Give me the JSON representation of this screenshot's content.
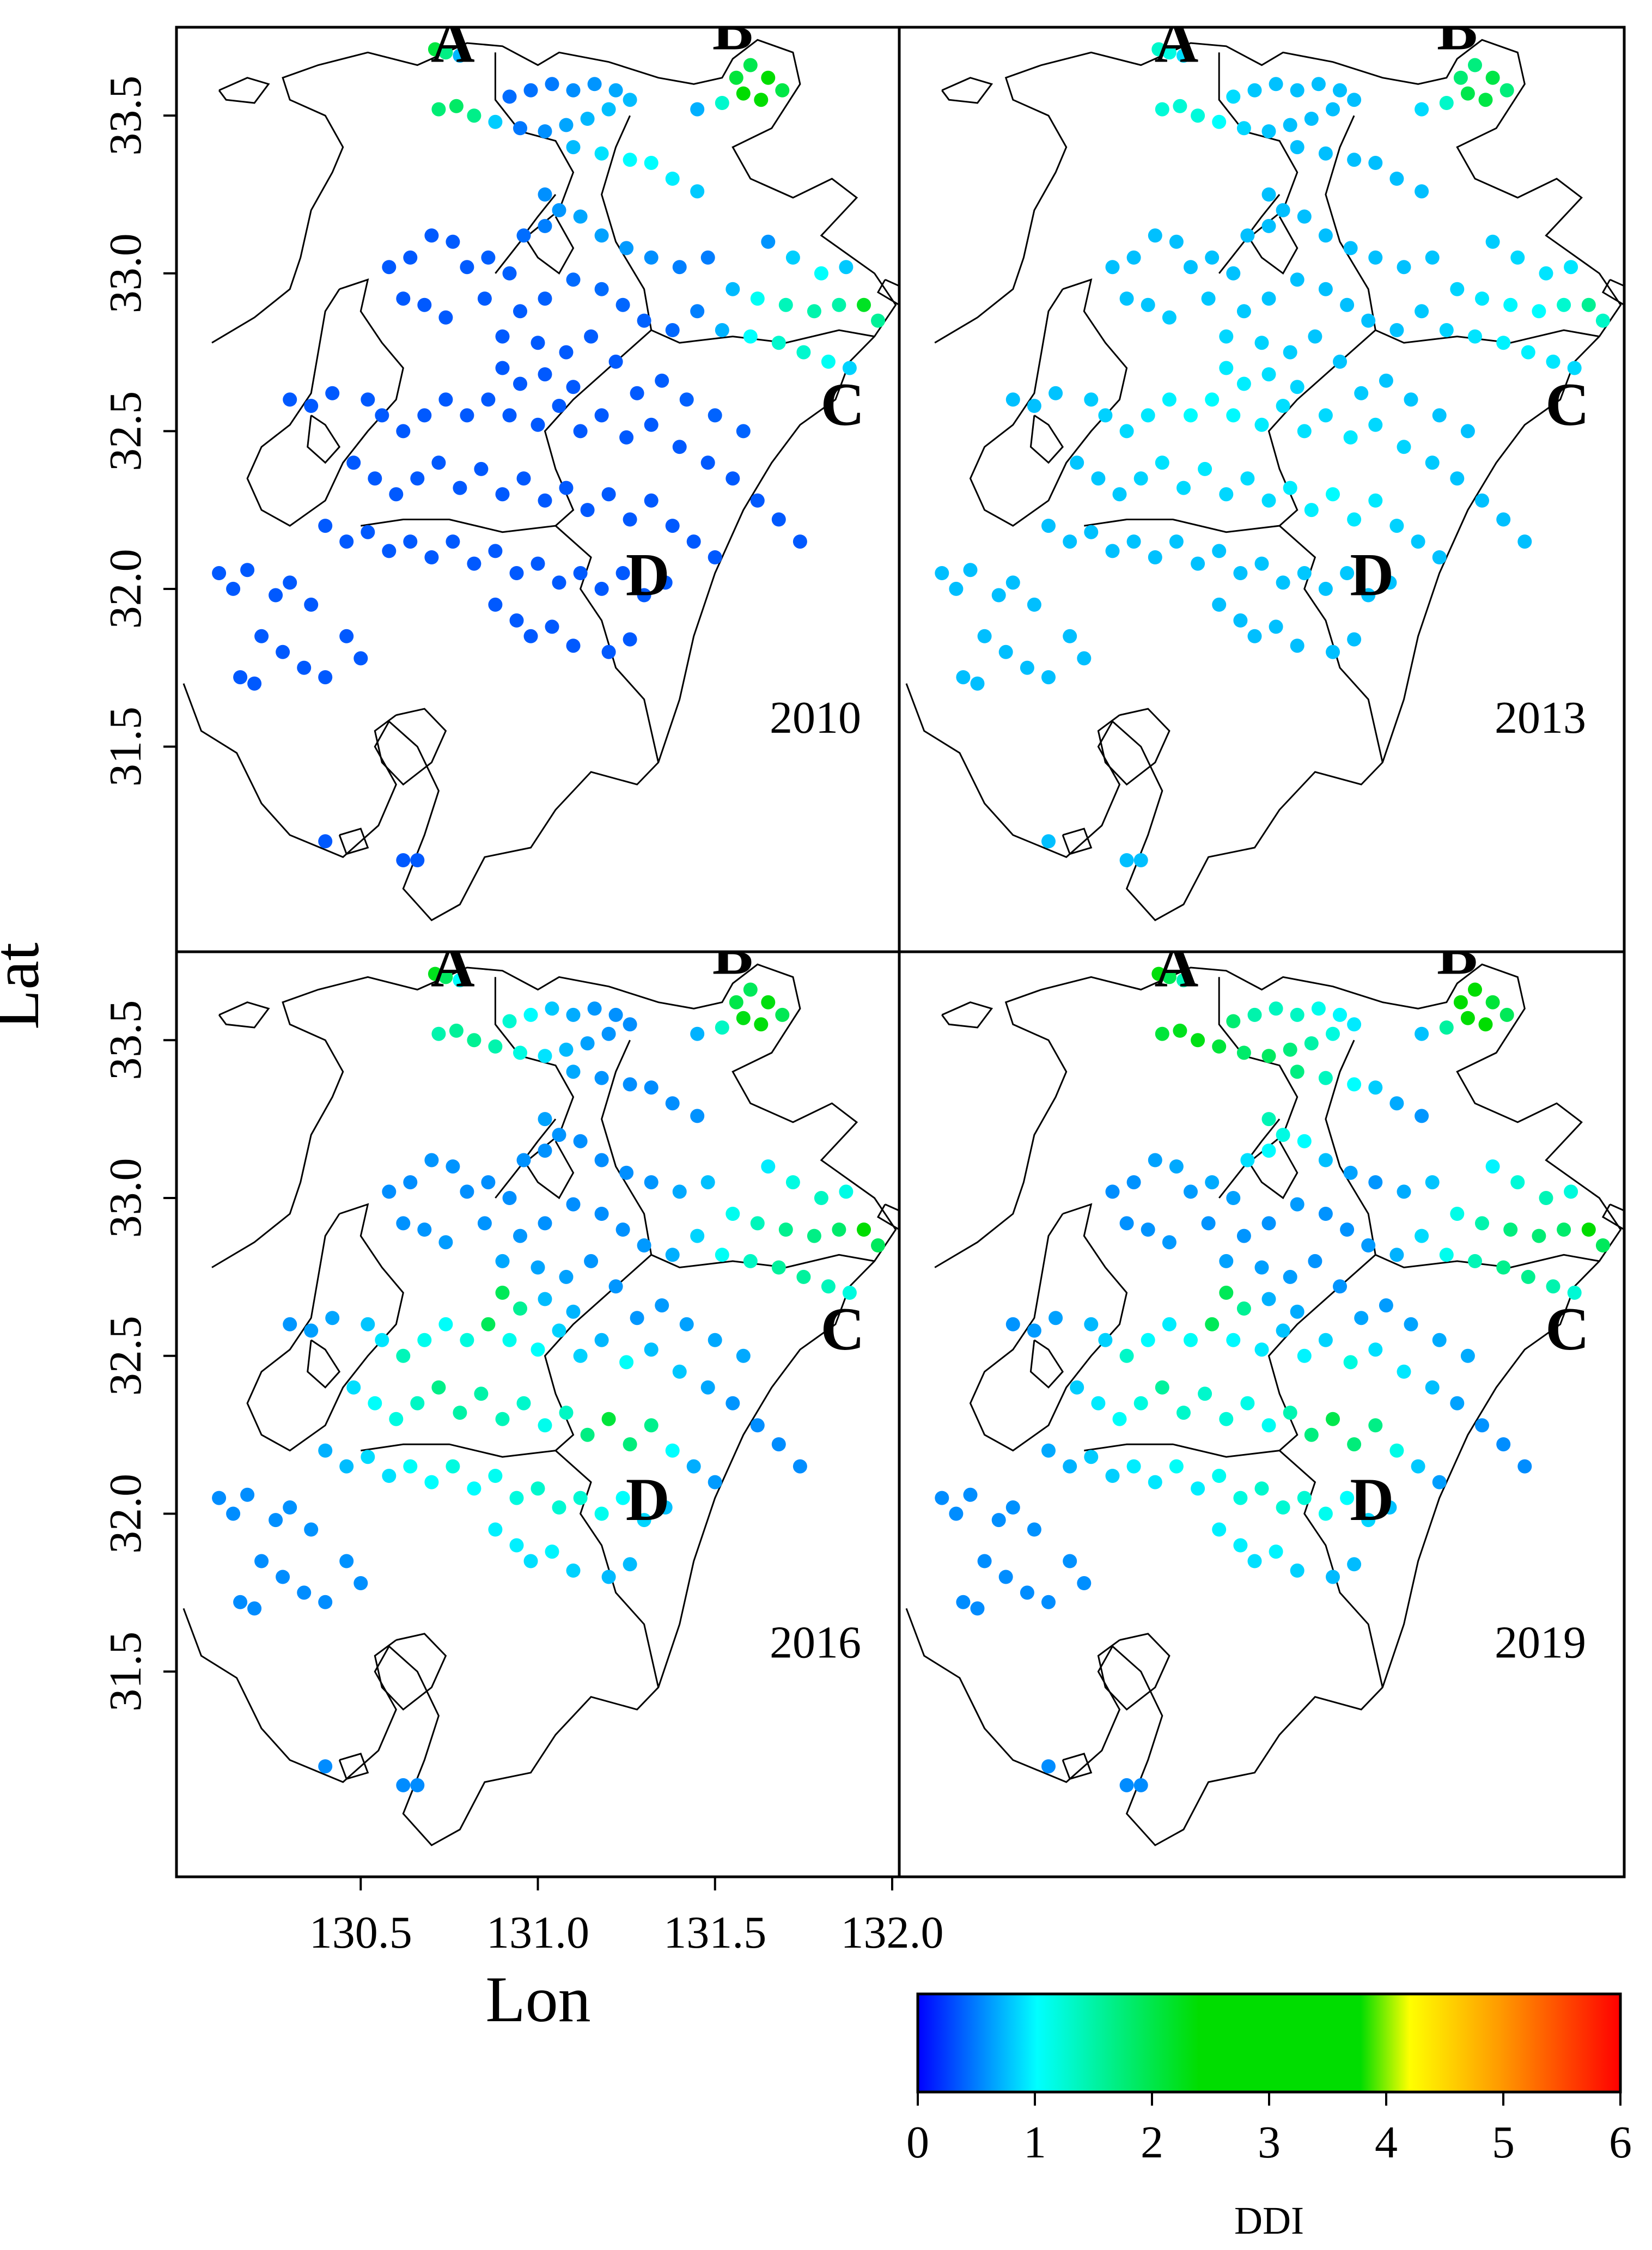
{
  "figure": {
    "y_label": "Lat",
    "x_label": "Lon",
    "colorbar_label": "DDI"
  },
  "colors": {
    "frame": "#000000",
    "background": "#ffffff",
    "colormap": [
      "#0000ff",
      "#00ffff",
      "#00dd00",
      "#00dd00",
      "#ffff00",
      "#ff9900",
      "#ff0000"
    ]
  },
  "chart_data": {
    "type": "scatter",
    "title": "",
    "xlabel": "Lon",
    "ylabel": "Lat",
    "xlim": [
      129.98,
      132.02
    ],
    "ylim": [
      30.85,
      33.78
    ],
    "x_ticks": [
      130.5,
      131.0,
      131.5,
      132.0
    ],
    "x_tick_labels": [
      "130.5",
      "131.0",
      "131.5",
      "132.0"
    ],
    "y_ticks": [
      31.5,
      32.0,
      32.5,
      33.0,
      33.5
    ],
    "y_tick_labels": [
      "31.5",
      "32.0",
      "32.5",
      "33.0",
      "33.5"
    ],
    "colorbar": {
      "label": "DDI",
      "range": [
        0,
        6
      ],
      "ticks": [
        0,
        1,
        2,
        3,
        4,
        5,
        6
      ],
      "tick_labels": [
        "0",
        "1",
        "2",
        "3",
        "4",
        "5",
        "6"
      ]
    },
    "region_labels": [
      {
        "label": "A",
        "lon": 130.76,
        "lat": 33.67
      },
      {
        "label": "B",
        "lon": 131.55,
        "lat": 33.71
      },
      {
        "label": "C",
        "lon": 131.86,
        "lat": 32.52
      },
      {
        "label": "D",
        "lon": 131.31,
        "lat": 31.98
      }
    ],
    "hotspots": {
      "2010": [
        {
          "lon": 130.71,
          "lat": 33.7,
          "r": 0.04,
          "v": 2.1
        },
        {
          "lon": 130.76,
          "lat": 33.48,
          "r": 0.07,
          "v": 2.3
        },
        {
          "lon": 131.62,
          "lat": 33.59,
          "r": 0.08,
          "v": 2.8
        },
        {
          "lon": 131.92,
          "lat": 32.9,
          "r": 0.07,
          "v": 2.2
        },
        {
          "lon": 131.75,
          "lat": 32.85,
          "r": 0.15,
          "v": 1.5
        },
        {
          "lon": 131.3,
          "lat": 33.35,
          "r": 0.2,
          "v": 1.0
        }
      ],
      "2013": [
        {
          "lon": 130.71,
          "lat": 33.7,
          "r": 0.04,
          "v": 1.3
        },
        {
          "lon": 130.76,
          "lat": 33.48,
          "r": 0.1,
          "v": 1.3
        },
        {
          "lon": 131.62,
          "lat": 33.59,
          "r": 0.08,
          "v": 2.2
        },
        {
          "lon": 131.92,
          "lat": 32.9,
          "r": 0.07,
          "v": 1.6
        },
        {
          "lon": 131.75,
          "lat": 32.85,
          "r": 0.15,
          "v": 1.0
        },
        {
          "lon": 130.85,
          "lat": 32.55,
          "r": 0.18,
          "v": 1.0
        },
        {
          "lon": 131.2,
          "lat": 32.35,
          "r": 0.15,
          "v": 1.0
        }
      ],
      "2016": [
        {
          "lon": 130.71,
          "lat": 33.7,
          "r": 0.04,
          "v": 2.3
        },
        {
          "lon": 130.8,
          "lat": 33.5,
          "r": 0.15,
          "v": 1.6
        },
        {
          "lon": 131.62,
          "lat": 33.59,
          "r": 0.08,
          "v": 2.6
        },
        {
          "lon": 131.92,
          "lat": 32.9,
          "r": 0.08,
          "v": 2.4
        },
        {
          "lon": 131.75,
          "lat": 32.85,
          "r": 0.18,
          "v": 1.7
        },
        {
          "lon": 130.88,
          "lat": 32.65,
          "r": 0.06,
          "v": 2.6
        },
        {
          "lon": 130.68,
          "lat": 32.45,
          "r": 0.06,
          "v": 2.5
        },
        {
          "lon": 131.22,
          "lat": 32.3,
          "r": 0.12,
          "v": 2.1
        },
        {
          "lon": 130.8,
          "lat": 32.35,
          "r": 0.22,
          "v": 1.5
        },
        {
          "lon": 131.05,
          "lat": 32.1,
          "r": 0.2,
          "v": 1.3
        }
      ],
      "2019": [
        {
          "lon": 130.71,
          "lat": 33.7,
          "r": 0.04,
          "v": 2.4
        },
        {
          "lon": 130.8,
          "lat": 33.5,
          "r": 0.16,
          "v": 2.3
        },
        {
          "lon": 131.0,
          "lat": 33.42,
          "r": 0.18,
          "v": 1.9
        },
        {
          "lon": 131.6,
          "lat": 33.65,
          "r": 0.05,
          "v": 3.6
        },
        {
          "lon": 131.62,
          "lat": 33.55,
          "r": 0.08,
          "v": 2.7
        },
        {
          "lon": 131.92,
          "lat": 32.9,
          "r": 0.08,
          "v": 2.4
        },
        {
          "lon": 131.75,
          "lat": 32.85,
          "r": 0.18,
          "v": 1.8
        },
        {
          "lon": 130.88,
          "lat": 32.65,
          "r": 0.06,
          "v": 2.6
        },
        {
          "lon": 130.68,
          "lat": 32.45,
          "r": 0.06,
          "v": 2.3
        },
        {
          "lon": 131.22,
          "lat": 32.3,
          "r": 0.14,
          "v": 2.0
        },
        {
          "lon": 130.8,
          "lat": 32.35,
          "r": 0.22,
          "v": 1.3
        },
        {
          "lon": 131.05,
          "lat": 32.1,
          "r": 0.2,
          "v": 1.3
        }
      ]
    },
    "panels": [
      {
        "year": "2010",
        "base_ddi": 0.35
      },
      {
        "year": "2013",
        "base_ddi": 0.75
      },
      {
        "year": "2016",
        "base_ddi": 0.55
      },
      {
        "year": "2019",
        "base_ddi": 0.55
      }
    ],
    "stations": [
      [
        130.71,
        33.71
      ],
      [
        130.74,
        33.7
      ],
      [
        130.78,
        33.69
      ],
      [
        130.72,
        33.52
      ],
      [
        130.77,
        33.53
      ],
      [
        130.82,
        33.5
      ],
      [
        130.88,
        33.48
      ],
      [
        130.95,
        33.46
      ],
      [
        131.02,
        33.45
      ],
      [
        131.08,
        33.47
      ],
      [
        131.14,
        33.49
      ],
      [
        131.2,
        33.52
      ],
      [
        131.26,
        33.55
      ],
      [
        130.92,
        33.56
      ],
      [
        130.98,
        33.58
      ],
      [
        131.04,
        33.6
      ],
      [
        131.1,
        33.58
      ],
      [
        131.16,
        33.6
      ],
      [
        131.22,
        33.58
      ],
      [
        131.1,
        33.4
      ],
      [
        131.18,
        33.38
      ],
      [
        131.26,
        33.36
      ],
      [
        131.32,
        33.35
      ],
      [
        131.38,
        33.3
      ],
      [
        131.45,
        33.26
      ],
      [
        131.45,
        33.52
      ],
      [
        131.52,
        33.54
      ],
      [
        131.56,
        33.62
      ],
      [
        131.6,
        33.66
      ],
      [
        131.65,
        33.62
      ],
      [
        131.69,
        33.58
      ],
      [
        131.58,
        33.57
      ],
      [
        131.63,
        33.55
      ],
      [
        131.02,
        33.25
      ],
      [
        131.06,
        33.2
      ],
      [
        131.12,
        33.18
      ],
      [
        131.18,
        33.12
      ],
      [
        131.25,
        33.08
      ],
      [
        131.32,
        33.05
      ],
      [
        131.4,
        33.02
      ],
      [
        131.48,
        33.05
      ],
      [
        131.55,
        32.95
      ],
      [
        131.62,
        32.92
      ],
      [
        131.7,
        32.9
      ],
      [
        131.78,
        32.88
      ],
      [
        131.85,
        32.9
      ],
      [
        131.92,
        32.9
      ],
      [
        131.96,
        32.85
      ],
      [
        131.45,
        32.88
      ],
      [
        131.52,
        32.82
      ],
      [
        131.6,
        32.8
      ],
      [
        131.68,
        32.78
      ],
      [
        131.75,
        32.75
      ],
      [
        131.82,
        32.72
      ],
      [
        131.88,
        32.7
      ],
      [
        131.65,
        33.1
      ],
      [
        131.72,
        33.05
      ],
      [
        131.8,
        33.0
      ],
      [
        131.87,
        33.02
      ],
      [
        130.58,
        33.02
      ],
      [
        130.64,
        33.05
      ],
      [
        130.7,
        33.12
      ],
      [
        130.76,
        33.1
      ],
      [
        130.8,
        33.02
      ],
      [
        130.86,
        33.05
      ],
      [
        130.92,
        33.0
      ],
      [
        130.62,
        32.92
      ],
      [
        130.68,
        32.9
      ],
      [
        130.74,
        32.86
      ],
      [
        130.85,
        32.92
      ],
      [
        130.95,
        32.88
      ],
      [
        131.02,
        32.92
      ],
      [
        131.1,
        32.98
      ],
      [
        131.18,
        32.95
      ],
      [
        131.24,
        32.9
      ],
      [
        131.3,
        32.85
      ],
      [
        131.38,
        32.82
      ],
      [
        130.96,
        33.12
      ],
      [
        131.02,
        33.15
      ],
      [
        130.9,
        32.8
      ],
      [
        131.0,
        32.78
      ],
      [
        131.08,
        32.75
      ],
      [
        131.15,
        32.8
      ],
      [
        131.22,
        32.72
      ],
      [
        130.52,
        32.6
      ],
      [
        130.56,
        32.55
      ],
      [
        130.62,
        32.5
      ],
      [
        130.68,
        32.55
      ],
      [
        130.74,
        32.6
      ],
      [
        130.8,
        32.55
      ],
      [
        130.86,
        32.6
      ],
      [
        130.92,
        32.55
      ],
      [
        131.0,
        32.52
      ],
      [
        131.06,
        32.58
      ],
      [
        131.12,
        32.5
      ],
      [
        131.18,
        32.55
      ],
      [
        131.25,
        32.48
      ],
      [
        131.32,
        32.52
      ],
      [
        131.4,
        32.45
      ],
      [
        131.48,
        32.4
      ],
      [
        131.55,
        32.35
      ],
      [
        131.62,
        32.28
      ],
      [
        131.68,
        32.22
      ],
      [
        131.74,
        32.15
      ],
      [
        130.48,
        32.4
      ],
      [
        130.54,
        32.35
      ],
      [
        130.6,
        32.3
      ],
      [
        130.66,
        32.35
      ],
      [
        130.72,
        32.4
      ],
      [
        130.78,
        32.32
      ],
      [
        130.84,
        32.38
      ],
      [
        130.9,
        32.3
      ],
      [
        130.96,
        32.35
      ],
      [
        131.02,
        32.28
      ],
      [
        131.08,
        32.32
      ],
      [
        131.14,
        32.25
      ],
      [
        131.2,
        32.3
      ],
      [
        131.26,
        32.22
      ],
      [
        131.32,
        32.28
      ],
      [
        131.38,
        32.2
      ],
      [
        131.44,
        32.15
      ],
      [
        131.5,
        32.1
      ],
      [
        130.4,
        32.2
      ],
      [
        130.46,
        32.15
      ],
      [
        130.52,
        32.18
      ],
      [
        130.58,
        32.12
      ],
      [
        130.64,
        32.15
      ],
      [
        130.7,
        32.1
      ],
      [
        130.76,
        32.15
      ],
      [
        130.82,
        32.08
      ],
      [
        130.88,
        32.12
      ],
      [
        130.94,
        32.05
      ],
      [
        131.0,
        32.08
      ],
      [
        131.06,
        32.02
      ],
      [
        131.12,
        32.05
      ],
      [
        131.18,
        32.0
      ],
      [
        131.24,
        32.05
      ],
      [
        131.3,
        31.98
      ],
      [
        131.36,
        32.02
      ],
      [
        130.3,
        32.6
      ],
      [
        130.36,
        32.58
      ],
      [
        130.42,
        32.62
      ],
      [
        130.1,
        32.05
      ],
      [
        130.14,
        32.0
      ],
      [
        130.18,
        32.06
      ],
      [
        130.26,
        31.98
      ],
      [
        130.3,
        32.02
      ],
      [
        130.36,
        31.95
      ],
      [
        130.22,
        31.85
      ],
      [
        130.28,
        31.8
      ],
      [
        130.34,
        31.75
      ],
      [
        130.4,
        31.72
      ],
      [
        130.46,
        31.85
      ],
      [
        130.5,
        31.78
      ],
      [
        130.16,
        31.72
      ],
      [
        130.2,
        31.7
      ],
      [
        130.88,
        31.95
      ],
      [
        130.94,
        31.9
      ],
      [
        130.98,
        31.85
      ],
      [
        131.04,
        31.88
      ],
      [
        131.1,
        31.82
      ],
      [
        131.2,
        31.8
      ],
      [
        131.26,
        31.84
      ],
      [
        130.4,
        31.2
      ],
      [
        130.62,
        31.14
      ],
      [
        130.66,
        31.14
      ],
      [
        130.9,
        32.7
      ],
      [
        130.95,
        32.65
      ],
      [
        131.02,
        32.68
      ],
      [
        131.1,
        32.64
      ],
      [
        131.28,
        32.62
      ],
      [
        131.35,
        32.66
      ],
      [
        131.42,
        32.6
      ],
      [
        131.5,
        32.55
      ],
      [
        131.58,
        32.5
      ]
    ]
  }
}
